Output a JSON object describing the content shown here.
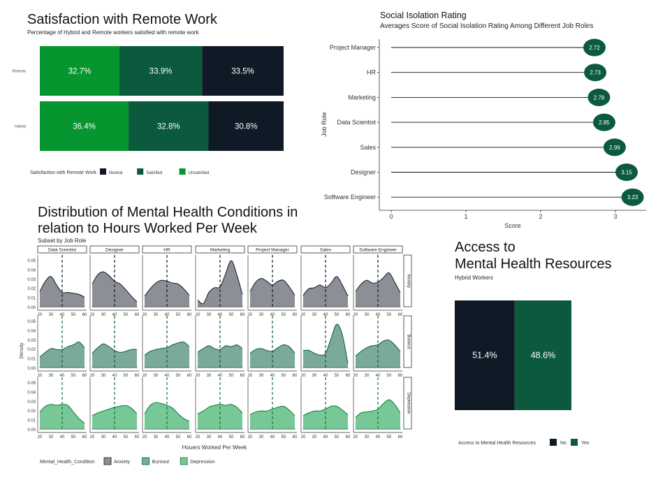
{
  "satisfaction": {
    "title": "Satisfaction with Remote Work",
    "subtitle": "Percentage of Hybrid and Remote workers satisfied with remote work",
    "legend_title": "Satisfaction with Remote Work",
    "colors": {
      "Neutral": "#101a26",
      "Satisfied": "#0c5a3e",
      "Unsatisfied": "#07952f"
    },
    "chart_data": {
      "type": "bar",
      "orientation": "horizontal-stacked",
      "categories": [
        "Remote",
        "Hybrid"
      ],
      "series": [
        {
          "name": "Unsatisfied",
          "values": [
            32.7,
            36.4
          ]
        },
        {
          "name": "Satisfied",
          "values": [
            33.9,
            32.8
          ]
        },
        {
          "name": "Neutral",
          "values": [
            33.5,
            30.8
          ]
        }
      ],
      "labels": [
        [
          "32.7%",
          "33.9%",
          "33.5%"
        ],
        [
          "36.4%",
          "32.8%",
          "30.8%"
        ]
      ],
      "legend": [
        "Neutral",
        "Satisfied",
        "Unsatisfied"
      ],
      "legend_position": "bottom"
    }
  },
  "isolation": {
    "title": "Social Isolation Rating",
    "subtitle": "Averages Score of Social Isolation Rating Among Different Job Roles",
    "point_color": "#0c5a3e",
    "chart_data": {
      "type": "lollipop",
      "categories": [
        "Project Manager",
        "HR",
        "Marketing",
        "Data Scientist",
        "Sales",
        "Designer",
        "Software Engineer"
      ],
      "values": [
        2.72,
        2.73,
        2.78,
        2.85,
        2.99,
        3.15,
        3.23
      ],
      "labels": [
        "2.72",
        "2.73",
        "2.78",
        "2.85",
        "2.99",
        "3.15",
        "3.23"
      ],
      "xlabel": "Score",
      "ylabel": "Job Role",
      "xlim": [
        0,
        3.3
      ],
      "xticks": [
        "0",
        "1",
        "2",
        "3"
      ],
      "grid": false
    }
  },
  "distribution": {
    "title_line1": "Distribution of Mental Health Conditions in",
    "title_line2": "relation to Hours Worked Per Week",
    "subtitle": "Subset by Job Role",
    "xlabel": "Houers Worked Per Week",
    "ylabel": "Density",
    "legend_title": "Mental_Health_Condition",
    "colors": {
      "Anxiety": "#8c8f96",
      "Burnout": "#7aaa9b",
      "Depression": "#78c796"
    },
    "line_colors": {
      "Anxiety": "#101a26",
      "Burnout": "#0c5a3e",
      "Depression": "#0a7a35"
    },
    "chart_data": {
      "type": "area",
      "facet_columns": [
        "Data Scientist",
        "Designer",
        "HR",
        "Marketing",
        "Project Manager",
        "Sales",
        "Software Engineer"
      ],
      "facet_rows": [
        "Anxiety",
        "Burnout",
        "Depression"
      ],
      "x": [
        20,
        25,
        30,
        35,
        40,
        45,
        50,
        55,
        60
      ],
      "xlim": [
        20,
        60
      ],
      "xticks": [
        "20",
        "30",
        "40",
        "50",
        "60"
      ],
      "ylim": [
        0,
        0.05
      ],
      "yticks": [
        "0.00",
        "0.01",
        "0.02",
        "0.03",
        "0.04",
        "0.05"
      ],
      "reference_x": 40,
      "curves": {
        "Anxiety": {
          "Data Scientist": [
            0.017,
            0.028,
            0.033,
            0.024,
            0.016,
            0.016,
            0.015,
            0.014,
            0.011
          ],
          "Designer": [
            0.025,
            0.035,
            0.038,
            0.034,
            0.028,
            0.025,
            0.019,
            0.012,
            0.006
          ],
          "HR": [
            0.012,
            0.02,
            0.026,
            0.029,
            0.028,
            0.026,
            0.025,
            0.02,
            0.013
          ],
          "Marketing": [
            0.008,
            0.004,
            0.016,
            0.021,
            0.022,
            0.036,
            0.05,
            0.035,
            0.014
          ],
          "Project Manager": [
            0.017,
            0.027,
            0.031,
            0.028,
            0.024,
            0.028,
            0.029,
            0.022,
            0.013
          ],
          "Sales": [
            0.013,
            0.02,
            0.021,
            0.024,
            0.021,
            0.026,
            0.033,
            0.024,
            0.012
          ],
          "Software Engineer": [
            0.017,
            0.025,
            0.029,
            0.026,
            0.027,
            0.032,
            0.037,
            0.027,
            0.016
          ]
        },
        "Burnout": {
          "Data Scientist": [
            0.012,
            0.017,
            0.021,
            0.02,
            0.02,
            0.023,
            0.025,
            0.028,
            0.022
          ],
          "Designer": [
            0.016,
            0.022,
            0.026,
            0.023,
            0.019,
            0.017,
            0.018,
            0.02,
            0.02
          ],
          "HR": [
            0.014,
            0.018,
            0.02,
            0.021,
            0.022,
            0.025,
            0.027,
            0.028,
            0.023
          ],
          "Marketing": [
            0.017,
            0.021,
            0.024,
            0.021,
            0.02,
            0.024,
            0.023,
            0.025,
            0.021
          ],
          "Project Manager": [
            0.016,
            0.02,
            0.021,
            0.019,
            0.018,
            0.022,
            0.025,
            0.023,
            0.016
          ],
          "Sales": [
            0.019,
            0.019,
            0.016,
            0.014,
            0.016,
            0.032,
            0.047,
            0.036,
            0.005
          ],
          "Software Engineer": [
            0.013,
            0.018,
            0.022,
            0.024,
            0.025,
            0.029,
            0.03,
            0.025,
            0.018
          ]
        },
        "Depression": {
          "Data Scientist": [
            0.019,
            0.025,
            0.027,
            0.026,
            0.027,
            0.026,
            0.019,
            0.012,
            0.007
          ],
          "Designer": [
            0.015,
            0.018,
            0.02,
            0.022,
            0.024,
            0.025,
            0.026,
            0.023,
            0.017
          ],
          "HR": [
            0.017,
            0.026,
            0.029,
            0.028,
            0.026,
            0.023,
            0.017,
            0.012,
            0.009
          ],
          "Marketing": [
            0.017,
            0.02,
            0.024,
            0.026,
            0.027,
            0.026,
            0.027,
            0.024,
            0.018
          ],
          "Project Manager": [
            0.016,
            0.019,
            0.02,
            0.02,
            0.022,
            0.024,
            0.025,
            0.021,
            0.015
          ],
          "Sales": [
            0.015,
            0.018,
            0.02,
            0.02,
            0.022,
            0.025,
            0.025,
            0.021,
            0.016
          ],
          "Software Engineer": [
            0.013,
            0.018,
            0.019,
            0.02,
            0.022,
            0.028,
            0.032,
            0.027,
            0.018
          ]
        }
      },
      "legend_position": "bottom"
    }
  },
  "access": {
    "title_line1": "Access to",
    "title_line2": "Mental Health Resources",
    "subtitle": "Hybrid Workers",
    "legend_title": "Access to Mental Health Resources",
    "colors": {
      "No": "#101a26",
      "Yes": "#0c5a3e"
    },
    "chart_data": {
      "type": "bar",
      "orientation": "horizontal-stacked",
      "categories": [
        "Hybrid"
      ],
      "series": [
        {
          "name": "No",
          "values": [
            51.4
          ]
        },
        {
          "name": "Yes",
          "values": [
            48.6
          ]
        }
      ],
      "labels": [
        "51.4%",
        "48.6%"
      ],
      "legend": [
        "No",
        "Yes"
      ],
      "legend_position": "bottom"
    }
  }
}
